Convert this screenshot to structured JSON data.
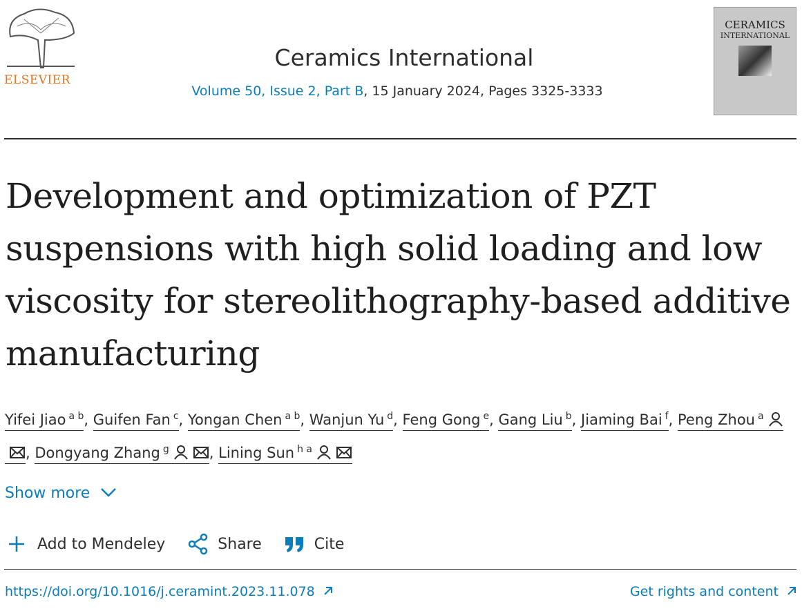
{
  "publisher": "ELSEVIER",
  "journal": {
    "name": "Ceramics International",
    "issue_link": "Volume 50, Issue 2, Part B",
    "issue_rest": ", 15 January 2024, Pages 3325-3333"
  },
  "cover": {
    "line1": "CERAMICS",
    "line2": "INTERNATIONAL"
  },
  "title": "Development and optimization of PZT suspensions with high solid loading and low viscosity for stereolithography-based additive manufacturing",
  "authors": {
    "separator": ",",
    "list": [
      {
        "name": "Yifei Jiao",
        "sup": "a b",
        "contact": false
      },
      {
        "name": "Guifen Fan",
        "sup": "c",
        "contact": false
      },
      {
        "name": "Yongan Chen",
        "sup": "a b",
        "contact": false
      },
      {
        "name": "Wanjun Yu",
        "sup": "d",
        "contact": false
      },
      {
        "name": "Feng Gong",
        "sup": "e",
        "contact": false
      },
      {
        "name": "Gang Liu",
        "sup": "b",
        "contact": false
      },
      {
        "name": "Jiaming Bai",
        "sup": "f",
        "contact": false
      },
      {
        "name": "Peng Zhou",
        "sup": "a",
        "contact": true
      },
      {
        "name": "Dongyang Zhang",
        "sup": "g",
        "contact": true
      },
      {
        "name": "Lining Sun",
        "sup": "h a",
        "contact": true
      }
    ]
  },
  "show_more": "Show more",
  "actions": {
    "mendeley": "Add to Mendeley",
    "share": "Share",
    "cite": "Cite"
  },
  "doi": "https://doi.org/10.1016/j.ceramint.2023.11.078",
  "rights": "Get rights and content"
}
